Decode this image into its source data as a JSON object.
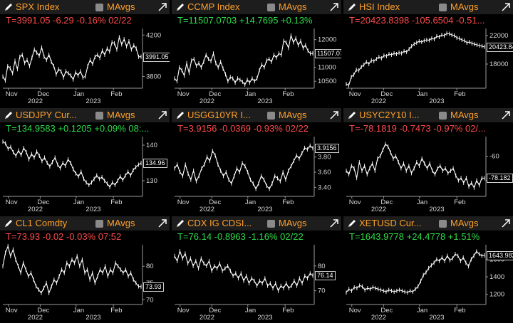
{
  "panels": [
    {
      "ticker": "SPX Index",
      "ma_label": "MAvgs",
      "quote": "T=3991.05 -6.29 -0.16% 02/22",
      "quote_color": "#ff4b4b",
      "last_value": "3991.05",
      "y_ticks": [
        "4200",
        "3800"
      ],
      "x_ticks": [
        "Nov",
        "Dec",
        "Jan",
        "Feb"
      ],
      "years": [
        "2022",
        "2023"
      ],
      "chart_data": {
        "type": "line",
        "ylim": [
          3700,
          4250
        ],
        "values": [
          3800,
          3760,
          3900,
          3880,
          3830,
          3950,
          3870,
          3990,
          4010,
          3930,
          3960,
          3900,
          3980,
          4060,
          4030,
          4000,
          4080,
          3990,
          3960,
          4010,
          3940,
          3900,
          3820,
          3870,
          3850,
          3790,
          3850,
          3830,
          3810,
          3770,
          3840,
          3810,
          3850,
          3790,
          3800,
          3900,
          3960,
          3920,
          3990,
          4010,
          3980,
          4050,
          4010,
          4070,
          4040,
          4130,
          4120,
          4060,
          4180,
          4110,
          4160,
          4090,
          4140,
          4060,
          4100,
          4070,
          3990,
          3991.05
        ]
      }
    },
    {
      "ticker": "CCMP Index",
      "ma_label": "MAvgs",
      "quote": "T=11507.0703 +14.7695 +0.13%",
      "quote_color": "#2ddc4a",
      "last_value": "11507.07",
      "y_ticks": [
        "12000",
        "11000",
        "10500"
      ],
      "x_ticks": [
        "Nov",
        "Dec",
        "Jan",
        "Feb"
      ],
      "years": [
        "2022",
        "2023"
      ],
      "chart_data": {
        "type": "line",
        "ylim": [
          10300,
          12350
        ],
        "values": [
          10600,
          10500,
          11000,
          10900,
          10700,
          11150,
          10800,
          11250,
          11300,
          11050,
          11150,
          11000,
          11200,
          11450,
          11300,
          11220,
          11500,
          11150,
          11000,
          11200,
          10950,
          10750,
          10500,
          10650,
          10600,
          10450,
          10600,
          10550,
          10480,
          10380,
          10550,
          10450,
          10600,
          10500,
          10600,
          10900,
          11100,
          11000,
          11250,
          11300,
          11200,
          11450,
          11350,
          11500,
          11450,
          11950,
          11900,
          11700,
          12150,
          11900,
          12050,
          11800,
          11950,
          11700,
          11800,
          11600,
          11500,
          11507.07
        ]
      }
    },
    {
      "ticker": "HSI Index",
      "ma_label": "MAvgs",
      "quote": "T=20423.8398 -105.6504 -0.51...",
      "quote_color": "#ff4b4b",
      "last_value": "20423.84",
      "y_ticks": [
        "22000",
        "18000"
      ],
      "x_ticks": [
        "Nov",
        "Dec",
        "Jan",
        "Feb"
      ],
      "years": [
        "2022",
        "2023"
      ],
      "chart_data": {
        "type": "line",
        "ylim": [
          14800,
          22800
        ],
        "values": [
          15200,
          15000,
          16200,
          16500,
          17200,
          17100,
          17600,
          17900,
          18300,
          18000,
          18500,
          18400,
          18700,
          19000,
          18800,
          19200,
          19100,
          19400,
          19300,
          19500,
          19400,
          19600,
          19500,
          19800,
          19700,
          20100,
          20500,
          20800,
          21000,
          21200,
          21100,
          21300,
          21400,
          21350,
          21600,
          21500,
          21900,
          21800,
          22100,
          22000,
          22300,
          22250,
          22100,
          22000,
          21700,
          21600,
          21400,
          21300,
          21000,
          21100,
          20900,
          20800,
          20700,
          20600,
          20500,
          20423.84
        ]
      }
    },
    {
      "ticker": "USDJPY Cur...",
      "ma_label": "MAvgs",
      "quote": "T=134.9583 +0.1205 +0.09% 08:...",
      "quote_color": "#2ddc4a",
      "last_value": "134.96",
      "y_ticks": [
        "140",
        "130"
      ],
      "x_ticks": [
        "Nov",
        "Dec",
        "Jan",
        "Feb"
      ],
      "years": [
        "2022",
        "2023"
      ],
      "chart_data": {
        "type": "line",
        "ylim": [
          126,
          142
        ],
        "values": [
          141,
          140.5,
          139,
          139.5,
          138,
          137,
          138.5,
          137.2,
          139.2,
          138,
          136,
          137.5,
          136.5,
          138.2,
          137,
          135.5,
          136.5,
          135,
          134,
          135.2,
          136.5,
          134.5,
          133.5,
          135,
          134.2,
          136,
          135,
          133.2,
          132,
          131.2,
          132.5,
          130.5,
          129.5,
          128.8,
          129.5,
          130.5,
          131.5,
          130.5,
          131,
          130,
          129.2,
          128.2,
          129.5,
          128.8,
          130,
          131.2,
          130.2,
          131.5,
          132.5,
          131.5,
          133,
          133.8,
          134.5,
          134.96
        ]
      }
    },
    {
      "ticker": "USGG10YR I...",
      "ma_label": "MAvgs",
      "quote": "T=3.9156 -0.0369 -0.93% 02/22",
      "quote_color": "#ff4b4b",
      "last_value": "3.9156",
      "y_ticks": [
        "3.80",
        "3.60",
        "3.40"
      ],
      "x_ticks": [
        "Nov",
        "Dec",
        "Jan",
        "Feb"
      ],
      "years": [
        "2022",
        "2023"
      ],
      "chart_data": {
        "type": "line",
        "ylim": [
          3.3,
          4.05
        ],
        "values": [
          3.65,
          3.7,
          3.6,
          3.55,
          3.7,
          3.58,
          3.5,
          3.62,
          3.48,
          3.55,
          3.65,
          3.7,
          3.8,
          3.75,
          3.88,
          3.82,
          3.7,
          3.62,
          3.55,
          3.6,
          3.5,
          3.45,
          3.55,
          3.65,
          3.6,
          3.72,
          3.68,
          3.6,
          3.5,
          3.45,
          3.38,
          3.45,
          3.55,
          3.5,
          3.42,
          3.38,
          3.45,
          3.55,
          3.52,
          3.48,
          3.6,
          3.5,
          3.62,
          3.68,
          3.75,
          3.82,
          3.78,
          3.85,
          3.92,
          3.9,
          3.95,
          3.9156
        ]
      }
    },
    {
      "ticker": "USYC2Y10 I...",
      "ma_label": "MAvgs",
      "quote": "T=-78.1819 -0.7473 -0.97% 02/...",
      "quote_color": "#ff4b4b",
      "last_value": "-78.182",
      "y_ticks": [
        "-60",
        "-80"
      ],
      "x_ticks": [
        "Nov",
        "Dec",
        "Jan",
        "Feb"
      ],
      "years": [
        "2022",
        "2023"
      ],
      "chart_data": {
        "type": "line",
        "ylim": [
          -92,
          -45
        ],
        "values": [
          -72,
          -75,
          -68,
          -70,
          -78,
          -65,
          -72,
          -68,
          -75,
          -70,
          -66,
          -72,
          -62,
          -60,
          -55,
          -50,
          -52,
          -57,
          -62,
          -60,
          -65,
          -70,
          -66,
          -72,
          -68,
          -74,
          -70,
          -65,
          -68,
          -62,
          -66,
          -70,
          -66,
          -72,
          -75,
          -70,
          -68,
          -72,
          -70,
          -74,
          -72,
          -70,
          -76,
          -80,
          -78,
          -82,
          -78,
          -85,
          -82,
          -86,
          -80,
          -84,
          -78,
          -78.182
        ]
      }
    },
    {
      "ticker": "CL1 Comdty",
      "ma_label": "MAvgs",
      "quote": "T=73.93 -0.02 -0.03% 07:52",
      "quote_color": "#ff4b4b",
      "last_value": "73.93",
      "y_ticks": [
        "80",
        "75",
        "70"
      ],
      "x_ticks": [
        "Nov",
        "Dec",
        "Jan",
        "Feb"
      ],
      "years": [
        "2022",
        "2023"
      ],
      "chart_data": {
        "type": "line",
        "ylim": [
          69,
          86
        ],
        "values": [
          80,
          84,
          86,
          83,
          85,
          82,
          80,
          78,
          81,
          79,
          77,
          78,
          76,
          74,
          73,
          72,
          73.5,
          75,
          72,
          74,
          76,
          75,
          77,
          79,
          78,
          81,
          80,
          82,
          81,
          83,
          80,
          82,
          78,
          79,
          76,
          78,
          75,
          77,
          79,
          78,
          80,
          77,
          79,
          78,
          81,
          80,
          79,
          78,
          79,
          77,
          78,
          76,
          75,
          74,
          73.93
        ]
      }
    },
    {
      "ticker": "CDX IG CDSI...",
      "ma_label": "MAvgs",
      "quote": "T=76.14 -0.8963 -1.16% 02/22",
      "quote_color": "#2ddc4a",
      "last_value": "76.14",
      "y_ticks": [
        "80",
        "70"
      ],
      "x_ticks": [
        "Nov",
        "Dec",
        "Jan",
        "Feb"
      ],
      "years": [
        "2022",
        "2023"
      ],
      "chart_data": {
        "type": "line",
        "ylim": [
          65,
          88
        ],
        "values": [
          84,
          82,
          86,
          83,
          85,
          81,
          83,
          80,
          82,
          79,
          83,
          81,
          80,
          82,
          78,
          80,
          79,
          81,
          78,
          79,
          80,
          78,
          76,
          77,
          75,
          77,
          74,
          76,
          73,
          75,
          74,
          72,
          74,
          73,
          75,
          72,
          73,
          71,
          73,
          70,
          72,
          71,
          73,
          71,
          72,
          74,
          72,
          75,
          73,
          76,
          75,
          77,
          76.14
        ]
      }
    },
    {
      "ticker": "XETUSD Cur...",
      "ma_label": "MAvgs",
      "quote": "T=1643.9778 +24.4778 +1.51%",
      "quote_color": "#2ddc4a",
      "last_value": "1643.982",
      "y_ticks": [
        "1600",
        "1400",
        "1200"
      ],
      "x_ticks": [
        "Nov",
        "Dec",
        "Jan",
        "Feb"
      ],
      "years": [
        "2022",
        "2023"
      ],
      "chart_data": {
        "type": "line",
        "ylim": [
          1100,
          1750
        ],
        "values": [
          1220,
          1260,
          1240,
          1280,
          1270,
          1300,
          1290,
          1250,
          1270,
          1260,
          1280,
          1270,
          1260,
          1250,
          1240,
          1230,
          1250,
          1240,
          1230,
          1240,
          1250,
          1240,
          1230,
          1220,
          1240,
          1230,
          1260,
          1290,
          1350,
          1420,
          1450,
          1500,
          1530,
          1560,
          1600,
          1580,
          1620,
          1580,
          1640,
          1590,
          1610,
          1660,
          1640,
          1580,
          1620,
          1560,
          1520,
          1600,
          1640,
          1690,
          1660,
          1640,
          1643.98
        ]
      }
    }
  ]
}
